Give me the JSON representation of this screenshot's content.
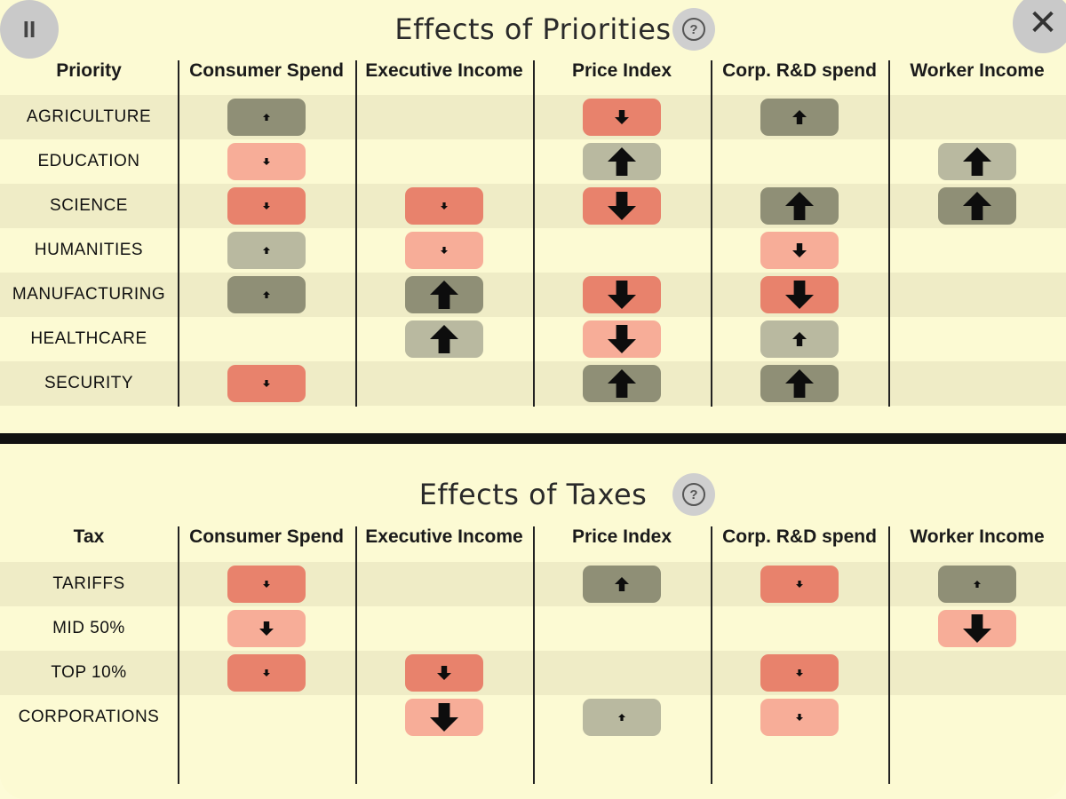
{
  "controls": {
    "pause_label": "II",
    "close_label": "✕",
    "help_label": "?"
  },
  "priorities": {
    "title": "Effects of Priorities",
    "row_header": "Priority",
    "columns": [
      "Consumer Spend",
      "Executive Income",
      "Price Index",
      "Corp. R&D spend",
      "Worker Income"
    ],
    "rows": [
      {
        "label": "AGRICULTURE",
        "cells": [
          {
            "dir": "up",
            "size": "s",
            "tone": "dark"
          },
          null,
          {
            "dir": "down",
            "size": "m",
            "tone": "dark"
          },
          {
            "dir": "up",
            "size": "m",
            "tone": "dark"
          },
          null
        ]
      },
      {
        "label": "EDUCATION",
        "cells": [
          {
            "dir": "down",
            "size": "s",
            "tone": "light"
          },
          null,
          {
            "dir": "up",
            "size": "l",
            "tone": "light"
          },
          null,
          {
            "dir": "up",
            "size": "l",
            "tone": "light"
          }
        ]
      },
      {
        "label": "SCIENCE",
        "cells": [
          {
            "dir": "down",
            "size": "s",
            "tone": "dark"
          },
          {
            "dir": "down",
            "size": "s",
            "tone": "dark"
          },
          {
            "dir": "down",
            "size": "l",
            "tone": "dark"
          },
          {
            "dir": "up",
            "size": "l",
            "tone": "dark"
          },
          {
            "dir": "up",
            "size": "l",
            "tone": "dark"
          }
        ]
      },
      {
        "label": "HUMANITIES",
        "cells": [
          {
            "dir": "up",
            "size": "s",
            "tone": "light"
          },
          {
            "dir": "down",
            "size": "s",
            "tone": "light"
          },
          null,
          {
            "dir": "down",
            "size": "m",
            "tone": "light"
          },
          null
        ]
      },
      {
        "label": "MANUFACTURING",
        "cells": [
          {
            "dir": "up",
            "size": "s",
            "tone": "dark"
          },
          {
            "dir": "up",
            "size": "l",
            "tone": "dark"
          },
          {
            "dir": "down",
            "size": "l",
            "tone": "dark"
          },
          {
            "dir": "down",
            "size": "l",
            "tone": "dark"
          },
          null
        ]
      },
      {
        "label": "HEALTHCARE",
        "cells": [
          null,
          {
            "dir": "up",
            "size": "l",
            "tone": "light"
          },
          {
            "dir": "down",
            "size": "l",
            "tone": "light"
          },
          {
            "dir": "up",
            "size": "m",
            "tone": "light"
          },
          null
        ]
      },
      {
        "label": "SECURITY",
        "cells": [
          {
            "dir": "down",
            "size": "s",
            "tone": "dark"
          },
          null,
          {
            "dir": "up",
            "size": "l",
            "tone": "dark"
          },
          {
            "dir": "up",
            "size": "l",
            "tone": "dark"
          },
          null
        ]
      }
    ]
  },
  "taxes": {
    "title": "Effects of Taxes",
    "row_header": "Tax",
    "columns": [
      "Consumer Spend",
      "Executive Income",
      "Price Index",
      "Corp. R&D spend",
      "Worker Income"
    ],
    "rows": [
      {
        "label": "TARIFFS",
        "cells": [
          {
            "dir": "down",
            "size": "s",
            "tone": "dark"
          },
          null,
          {
            "dir": "up",
            "size": "m",
            "tone": "dark"
          },
          {
            "dir": "down",
            "size": "s",
            "tone": "dark"
          },
          {
            "dir": "up",
            "size": "s",
            "tone": "dark"
          }
        ]
      },
      {
        "label": "MID 50%",
        "cells": [
          {
            "dir": "down",
            "size": "m",
            "tone": "light"
          },
          null,
          null,
          null,
          {
            "dir": "down",
            "size": "l",
            "tone": "light"
          }
        ]
      },
      {
        "label": "TOP 10%",
        "cells": [
          {
            "dir": "down",
            "size": "s",
            "tone": "dark"
          },
          {
            "dir": "down",
            "size": "m",
            "tone": "dark"
          },
          null,
          {
            "dir": "down",
            "size": "s",
            "tone": "dark"
          },
          null
        ]
      },
      {
        "label": "CORPORATIONS",
        "cells": [
          null,
          {
            "dir": "down",
            "size": "l",
            "tone": "light"
          },
          {
            "dir": "up",
            "size": "s",
            "tone": "light"
          },
          {
            "dir": "down",
            "size": "s",
            "tone": "light"
          },
          null
        ]
      }
    ]
  },
  "colors": {
    "background": "#fcfad3",
    "row_shade": "#efecc6",
    "up_cell": "#a8a88e",
    "down_cell": "#f09c86"
  }
}
